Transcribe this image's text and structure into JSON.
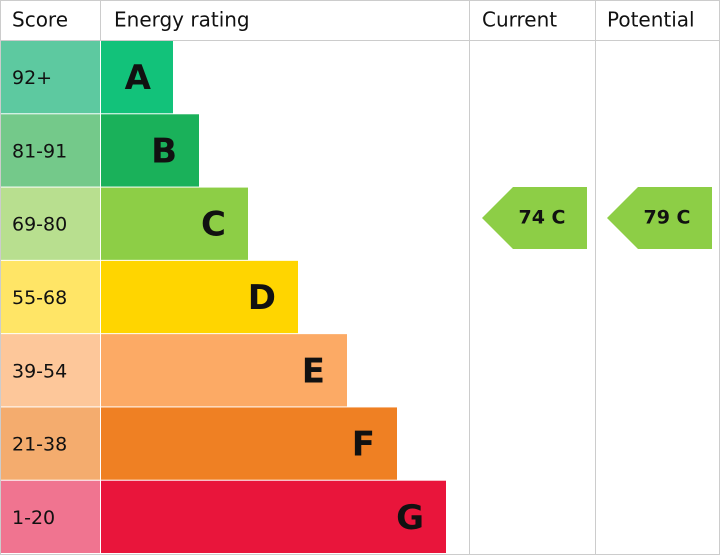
{
  "header": {
    "score": "Score",
    "rating": "Energy rating",
    "current": "Current",
    "potential": "Potential"
  },
  "bands": [
    {
      "score": "92+",
      "letter": "A"
    },
    {
      "score": "81-91",
      "letter": "B"
    },
    {
      "score": "69-80",
      "letter": "C"
    },
    {
      "score": "55-68",
      "letter": "D"
    },
    {
      "score": "39-54",
      "letter": "E"
    },
    {
      "score": "21-38",
      "letter": "F"
    },
    {
      "score": "1-20",
      "letter": "G"
    }
  ],
  "current": "74 C",
  "potential": "79 C"
}
